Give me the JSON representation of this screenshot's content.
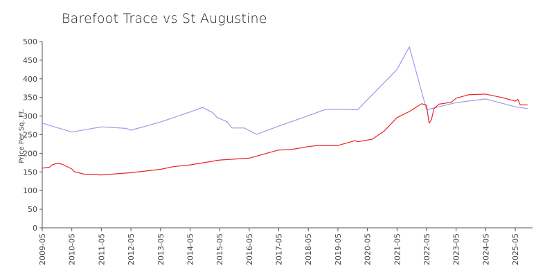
{
  "chart_data": {
    "type": "line",
    "title": "Barefoot Trace vs St Augustine",
    "xlabel": "",
    "ylabel": "Price Per Sq. Ft.",
    "ylim": [
      0,
      500
    ],
    "yticks": [
      0,
      50,
      100,
      150,
      200,
      250,
      300,
      350,
      400,
      450,
      500
    ],
    "xlim": [
      "2009-05",
      "2025-12"
    ],
    "xticks": [
      "2009-05",
      "2010-05",
      "2011-05",
      "2012-05",
      "2013-05",
      "2014-05",
      "2015-05",
      "2016-05",
      "2017-05",
      "2018-05",
      "2019-05",
      "2020-05",
      "2021-05",
      "2022-05",
      "2023-05",
      "2024-05",
      "2025-05"
    ],
    "grid": false,
    "legend": "none",
    "series": [
      {
        "color": "#9999ee",
        "points": [
          [
            "2009-05",
            281
          ],
          [
            "2010-05",
            257
          ],
          [
            "2011-05",
            271
          ],
          [
            "2012-03",
            267
          ],
          [
            "2012-05",
            262
          ],
          [
            "2013-05",
            284
          ],
          [
            "2014-05",
            311
          ],
          [
            "2014-10",
            323
          ],
          [
            "2015-02",
            310
          ],
          [
            "2015-04",
            296
          ],
          [
            "2015-08",
            285
          ],
          [
            "2015-10",
            268
          ],
          [
            "2016-03",
            268
          ],
          [
            "2016-08",
            251
          ],
          [
            "2017-05",
            273
          ],
          [
            "2018-05",
            301
          ],
          [
            "2018-12",
            318
          ],
          [
            "2019-05",
            318
          ],
          [
            "2019-08",
            318
          ],
          [
            "2020-01",
            317
          ],
          [
            "2021-05",
            425
          ],
          [
            "2021-10",
            486
          ],
          [
            "2022-05",
            317
          ],
          [
            "2023-05",
            336
          ],
          [
            "2024-05",
            346
          ],
          [
            "2025-05",
            325
          ],
          [
            "2025-10",
            320
          ]
        ]
      },
      {
        "color": "#ee2222",
        "points": [
          [
            "2009-05",
            160
          ],
          [
            "2009-08",
            163
          ],
          [
            "2009-09",
            169
          ],
          [
            "2009-11",
            173
          ],
          [
            "2010-01",
            171
          ],
          [
            "2010-05",
            158
          ],
          [
            "2010-06",
            151
          ],
          [
            "2010-10",
            144
          ],
          [
            "2011-05",
            142
          ],
          [
            "2012-05",
            148
          ],
          [
            "2013-05",
            157
          ],
          [
            "2013-10",
            164
          ],
          [
            "2014-05",
            169
          ],
          [
            "2015-05",
            182
          ],
          [
            "2016-05",
            187
          ],
          [
            "2017-05",
            209
          ],
          [
            "2017-10",
            210
          ],
          [
            "2018-05",
            218
          ],
          [
            "2018-09",
            221
          ],
          [
            "2019-05",
            221
          ],
          [
            "2019-12",
            234
          ],
          [
            "2020-01",
            231
          ],
          [
            "2020-07",
            238
          ],
          [
            "2020-12",
            261
          ],
          [
            "2021-05",
            296
          ],
          [
            "2021-10",
            312
          ],
          [
            "2022-03",
            333
          ],
          [
            "2022-05",
            329
          ],
          [
            "2022-06",
            281
          ],
          [
            "2022-07",
            291
          ],
          [
            "2022-08",
            320
          ],
          [
            "2022-10",
            332
          ],
          [
            "2023-03",
            337
          ],
          [
            "2023-05",
            348
          ],
          [
            "2023-10",
            357
          ],
          [
            "2024-01",
            358
          ],
          [
            "2024-05",
            359
          ],
          [
            "2024-12",
            349
          ],
          [
            "2025-05",
            340
          ],
          [
            "2025-06",
            345
          ],
          [
            "2025-07",
            330
          ],
          [
            "2025-10",
            330
          ]
        ]
      }
    ]
  }
}
